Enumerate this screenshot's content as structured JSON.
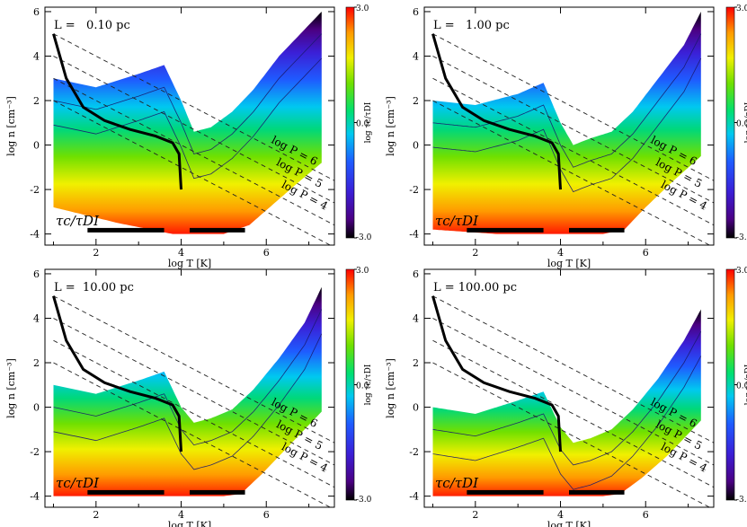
{
  "colorbar": {
    "label": "log τc/τDI",
    "tick_labels": [
      "3.0",
      "0.0",
      "-3.0"
    ],
    "range": [
      -3.0,
      3.0
    ]
  },
  "chart_data": [
    {
      "type": "heatmap",
      "panel": "top-left",
      "title": "L =   0.10 pc",
      "xlabel": "log T [K]",
      "ylabel": "log n [cm⁻³]",
      "xlim": [
        0.8,
        7.6
      ],
      "ylim": [
        -4.5,
        6.2
      ],
      "xticks": [
        "2",
        "4",
        "6"
      ],
      "yticks": [
        "-4",
        "-2",
        "0",
        "2",
        "4",
        "6"
      ],
      "annotation": "τc/τDI",
      "isobar_labels": [
        "log P = 6",
        "log P = 5",
        "log P = 4"
      ],
      "isobars_logP": [
        6,
        5,
        4,
        3
      ],
      "upper_edge": [
        [
          1.0,
          3.0
        ],
        [
          2.0,
          2.6
        ],
        [
          3.0,
          3.2
        ],
        [
          3.6,
          3.6
        ],
        [
          4.0,
          2.0
        ],
        [
          4.3,
          0.6
        ],
        [
          4.7,
          0.8
        ],
        [
          5.2,
          1.5
        ],
        [
          5.7,
          2.5
        ],
        [
          6.3,
          4.0
        ],
        [
          6.9,
          5.2
        ],
        [
          7.3,
          6.0
        ]
      ],
      "lower_edge": [
        [
          1.0,
          -2.8
        ],
        [
          2.5,
          -3.5
        ],
        [
          3.8,
          -4.0
        ],
        [
          4.0,
          -4.0
        ],
        [
          5.0,
          -4.0
        ],
        [
          5.6,
          -3.6
        ],
        [
          6.2,
          -2.6
        ],
        [
          6.8,
          -1.6
        ],
        [
          7.3,
          -0.8
        ]
      ],
      "equilibrium_curve": [
        [
          1.0,
          5.0
        ],
        [
          1.3,
          3.0
        ],
        [
          1.7,
          1.7
        ],
        [
          2.2,
          1.1
        ],
        [
          2.8,
          0.7
        ],
        [
          3.4,
          0.4
        ],
        [
          3.8,
          0.1
        ],
        [
          3.95,
          -0.4
        ],
        [
          4.0,
          -2.0
        ]
      ],
      "bars": [
        [
          1.8,
          3.6
        ],
        [
          4.2,
          5.5
        ]
      ]
    },
    {
      "type": "heatmap",
      "panel": "top-right",
      "title": "L =   1.00 pc",
      "xlabel": "log T [K]",
      "ylabel": "log n [cm⁻³]",
      "xlim": [
        0.8,
        7.6
      ],
      "ylim": [
        -4.5,
        6.2
      ],
      "xticks": [
        "2",
        "4",
        "6"
      ],
      "yticks": [
        "-4",
        "-2",
        "0",
        "2",
        "4",
        "6"
      ],
      "annotation": "τc/τDI",
      "isobar_labels": [
        "log P = 6",
        "log P = 5",
        "log P = 4"
      ],
      "isobars_logP": [
        6,
        5,
        4,
        3
      ],
      "upper_edge": [
        [
          1.0,
          2.0
        ],
        [
          2.0,
          1.8
        ],
        [
          3.0,
          2.3
        ],
        [
          3.6,
          2.8
        ],
        [
          4.0,
          1.0
        ],
        [
          4.3,
          0.0
        ],
        [
          4.7,
          0.3
        ],
        [
          5.2,
          0.6
        ],
        [
          5.7,
          1.5
        ],
        [
          6.3,
          3.0
        ],
        [
          6.9,
          4.5
        ],
        [
          7.3,
          6.0
        ]
      ],
      "lower_edge": [
        [
          1.0,
          -3.8
        ],
        [
          2.5,
          -4.0
        ],
        [
          3.8,
          -4.0
        ],
        [
          5.0,
          -4.0
        ],
        [
          5.5,
          -3.8
        ],
        [
          6.0,
          -2.8
        ],
        [
          6.6,
          -1.7
        ],
        [
          7.3,
          -0.5
        ]
      ],
      "equilibrium_curve": [
        [
          1.0,
          5.0
        ],
        [
          1.3,
          3.0
        ],
        [
          1.7,
          1.7
        ],
        [
          2.2,
          1.1
        ],
        [
          2.8,
          0.7
        ],
        [
          3.4,
          0.4
        ],
        [
          3.8,
          0.1
        ],
        [
          3.95,
          -0.4
        ],
        [
          4.0,
          -2.0
        ]
      ],
      "bars": [
        [
          1.8,
          3.6
        ],
        [
          4.2,
          5.5
        ]
      ]
    },
    {
      "type": "heatmap",
      "panel": "bottom-left",
      "title": "L =  10.00 pc",
      "xlabel": "log T [K]",
      "ylabel": "log n [cm⁻³]",
      "xlim": [
        0.8,
        7.6
      ],
      "ylim": [
        -4.5,
        6.2
      ],
      "xticks": [
        "2",
        "4",
        "6"
      ],
      "yticks": [
        "-4",
        "-2",
        "0",
        "2",
        "4",
        "6"
      ],
      "annotation": "τc/τDI",
      "isobar_labels": [
        "log P = 6",
        "log P = 5",
        "log P = 4"
      ],
      "isobars_logP": [
        6,
        5,
        4,
        3
      ],
      "upper_edge": [
        [
          1.0,
          1.0
        ],
        [
          2.0,
          0.6
        ],
        [
          3.0,
          1.2
        ],
        [
          3.6,
          1.6
        ],
        [
          4.0,
          0.0
        ],
        [
          4.3,
          -0.7
        ],
        [
          4.7,
          -0.5
        ],
        [
          5.2,
          -0.1
        ],
        [
          5.7,
          0.8
        ],
        [
          6.3,
          2.2
        ],
        [
          6.9,
          3.8
        ],
        [
          7.3,
          5.4
        ]
      ],
      "lower_edge": [
        [
          1.0,
          -4.0
        ],
        [
          3.0,
          -4.0
        ],
        [
          5.0,
          -4.0
        ],
        [
          5.4,
          -3.9
        ],
        [
          5.9,
          -3.0
        ],
        [
          6.5,
          -1.8
        ],
        [
          7.3,
          -0.2
        ]
      ],
      "equilibrium_curve": [
        [
          1.0,
          5.0
        ],
        [
          1.3,
          3.0
        ],
        [
          1.7,
          1.7
        ],
        [
          2.2,
          1.1
        ],
        [
          2.8,
          0.7
        ],
        [
          3.4,
          0.4
        ],
        [
          3.8,
          0.1
        ],
        [
          3.95,
          -0.4
        ],
        [
          4.0,
          -2.0
        ]
      ],
      "bars": [
        [
          1.8,
          3.6
        ],
        [
          4.2,
          5.5
        ]
      ]
    },
    {
      "type": "heatmap",
      "panel": "bottom-right",
      "title": "L = 100.00 pc",
      "xlabel": "log T [K]",
      "ylabel": "log n [cm⁻³]",
      "xlim": [
        0.8,
        7.6
      ],
      "ylim": [
        -4.5,
        6.2
      ],
      "xticks": [
        "2",
        "4",
        "6"
      ],
      "yticks": [
        "-4",
        "-2",
        "0",
        "2",
        "4",
        "6"
      ],
      "annotation": "τc/τDI",
      "isobar_labels": [
        "log P = 6",
        "log P = 5",
        "log P = 4"
      ],
      "isobars_logP": [
        6,
        5,
        4,
        3
      ],
      "upper_edge": [
        [
          1.0,
          0.0
        ],
        [
          2.0,
          -0.3
        ],
        [
          3.0,
          0.3
        ],
        [
          3.6,
          0.7
        ],
        [
          4.0,
          -0.9
        ],
        [
          4.3,
          -1.6
        ],
        [
          4.7,
          -1.4
        ],
        [
          5.2,
          -1.0
        ],
        [
          5.7,
          -0.1
        ],
        [
          6.3,
          1.3
        ],
        [
          6.9,
          3.0
        ],
        [
          7.3,
          4.4
        ]
      ],
      "lower_edge": [
        [
          1.0,
          -4.0
        ],
        [
          3.0,
          -4.0
        ],
        [
          5.0,
          -4.0
        ],
        [
          5.4,
          -3.9
        ],
        [
          5.9,
          -3.2
        ],
        [
          6.5,
          -2.2
        ],
        [
          7.3,
          -0.6
        ]
      ],
      "equilibrium_curve": [
        [
          1.0,
          5.0
        ],
        [
          1.3,
          3.0
        ],
        [
          1.7,
          1.7
        ],
        [
          2.2,
          1.1
        ],
        [
          2.8,
          0.7
        ],
        [
          3.4,
          0.4
        ],
        [
          3.8,
          0.1
        ],
        [
          3.95,
          -0.4
        ],
        [
          4.0,
          -2.0
        ]
      ],
      "bars": [
        [
          1.8,
          3.6
        ],
        [
          4.2,
          5.5
        ]
      ]
    }
  ]
}
